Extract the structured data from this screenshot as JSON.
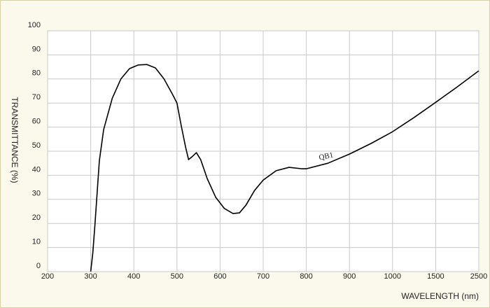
{
  "chart_data": {
    "type": "line",
    "x_label": "WAVELENGTH (nm)",
    "y_label": "TRANSMITTANCE  (%)",
    "x": [
      300,
      305,
      310,
      320,
      330,
      350,
      370,
      390,
      410,
      430,
      450,
      470,
      490,
      500,
      510,
      520,
      527,
      535,
      545,
      555,
      570,
      590,
      610,
      630,
      645,
      660,
      680,
      700,
      730,
      760,
      790,
      800,
      850,
      900,
      950,
      1000,
      1250,
      1500,
      2000,
      2500
    ],
    "series": [
      {
        "name": "QB1",
        "color": "#000000",
        "values": [
          0,
          8,
          20,
          46,
          59,
          72,
          80,
          84.3,
          85.8,
          86,
          84.6,
          80,
          73.5,
          70,
          60.5,
          51.7,
          46.5,
          47.7,
          49.4,
          46.5,
          38.7,
          30.8,
          26.2,
          24.1,
          24.4,
          27.6,
          33.7,
          38,
          41.9,
          43.3,
          42.7,
          42.7,
          45,
          48.8,
          53.2,
          58.1,
          64,
          70.3,
          76.7,
          83.4
        ]
      }
    ],
    "xlim": [
      200,
      2500
    ],
    "xticks": [
      200,
      300,
      400,
      500,
      600,
      700,
      800,
      900,
      1000,
      1500,
      2500
    ],
    "ylim": [
      0,
      100
    ],
    "yticks": [
      0,
      10,
      20,
      30,
      40,
      50,
      60,
      70,
      80,
      90,
      100
    ],
    "grid": true
  }
}
